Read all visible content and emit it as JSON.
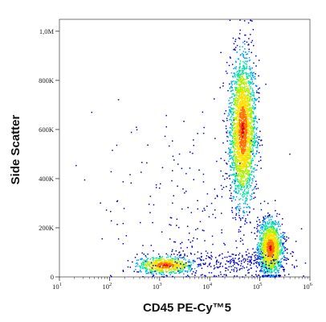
{
  "chart_data": {
    "type": "scatter",
    "subtype": "flow-cytometry-density-dot-plot",
    "xlabel": "CD45 PE-Cy™5",
    "ylabel": "Side Scatter",
    "x_scale": "log",
    "xlim": [
      10,
      1000000
    ],
    "ylim": [
      0,
      1048576
    ],
    "x_ticks": [
      {
        "value": 10,
        "base": "10",
        "exp": "1"
      },
      {
        "value": 100,
        "base": "10",
        "exp": "2"
      },
      {
        "value": 1000,
        "base": "10",
        "exp": "3"
      },
      {
        "value": 10000,
        "base": "10",
        "exp": "4"
      },
      {
        "value": 100000,
        "base": "10",
        "exp": "5"
      },
      {
        "value": 1000000,
        "base": "10",
        "exp": "6"
      }
    ],
    "y_ticks": [
      {
        "value": 0,
        "label": "0"
      },
      {
        "value": 200000,
        "label": "200K"
      },
      {
        "value": 400000,
        "label": "400K"
      },
      {
        "value": 600000,
        "label": "600K"
      },
      {
        "value": 800000,
        "label": "800K"
      },
      {
        "value": 1000000,
        "label": "1,0M"
      }
    ],
    "density_colors": [
      "#0000c8",
      "#00a0ff",
      "#00e0a0",
      "#b0f000",
      "#ffe000",
      "#ff7000",
      "#e00000"
    ],
    "populations": [
      {
        "x_log_center": 4.65,
        "y_center": 600000,
        "x_log_spread": 0.13,
        "y_spread": 150000,
        "count": 2600
      },
      {
        "x_log_center": 5.2,
        "y_center": 120000,
        "x_log_spread": 0.12,
        "y_spread": 55000,
        "count": 1400
      },
      {
        "x_log_center": 3.1,
        "y_center": 50000,
        "x_log_spread": 0.28,
        "y_spread": 18000,
        "count": 650
      },
      {
        "x_log_center": 4.5,
        "y_center": 60000,
        "x_log_spread": 0.6,
        "y_spread": 30000,
        "count": 250
      },
      {
        "x_log_center": 3.5,
        "y_center": 250000,
        "x_log_spread": 0.9,
        "y_spread": 200000,
        "count": 220
      }
    ]
  }
}
